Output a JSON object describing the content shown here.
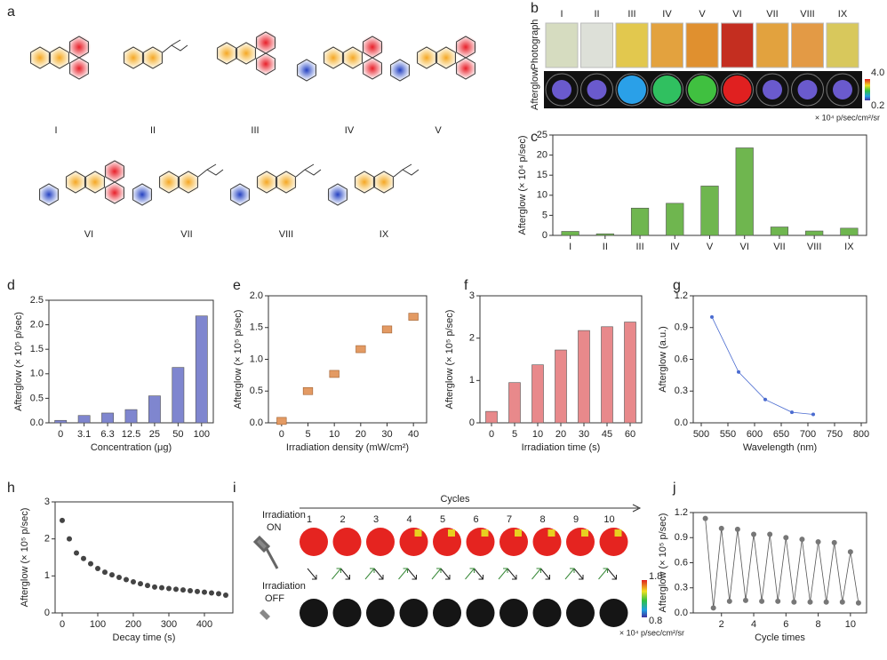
{
  "panel_labels": [
    "a",
    "b",
    "c",
    "d",
    "e",
    "f",
    "g",
    "h",
    "i",
    "j"
  ],
  "structures": {
    "labels": [
      "I",
      "II",
      "III",
      "IV",
      "V",
      "VI",
      "VII",
      "VIII",
      "IX"
    ]
  },
  "photo_panel": {
    "columns": [
      "I",
      "II",
      "III",
      "IV",
      "V",
      "VI",
      "VII",
      "VIII",
      "IX"
    ],
    "row_labels": [
      "Photograph",
      "Afterglow"
    ],
    "colorbar": [
      "4.0",
      "0.2"
    ],
    "unit": "× 10⁴ p/sec/cm²/sr"
  },
  "cycle_panel": {
    "title": "Cycles",
    "cycles": [
      "1",
      "2",
      "3",
      "4",
      "5",
      "6",
      "7",
      "8",
      "9",
      "10"
    ],
    "on_label": [
      "Irradiation",
      "ON"
    ],
    "off_label": [
      "Irradiation",
      "OFF"
    ],
    "colorbar": [
      "1.8",
      "0.8"
    ],
    "unit": "× 10⁴ p/sec/cm²/sr"
  },
  "chart_data": [
    {
      "type": "bar",
      "categories": [
        "I",
        "II",
        "III",
        "IV",
        "V",
        "VI",
        "VII",
        "VIII",
        "IX"
      ],
      "values": [
        1.0,
        0.4,
        6.8,
        8.0,
        12.3,
        21.8,
        2.1,
        1.1,
        1.8
      ],
      "color": "#6fb64f",
      "ylim": [
        0,
        25
      ],
      "yticks": [
        0,
        5,
        10,
        15,
        20,
        25
      ],
      "ylabel": "Afterglow (× 10⁴ p/sec)"
    },
    {
      "type": "bar",
      "categories": [
        "0",
        "3.1",
        "6.3",
        "12.5",
        "25",
        "50",
        "100"
      ],
      "values": [
        0.05,
        0.15,
        0.2,
        0.27,
        0.55,
        1.13,
        2.18
      ],
      "color": "#7f86cf",
      "ylim": [
        0,
        2.5
      ],
      "yticks": [
        {
          "value": 0,
          "label": "0.0"
        },
        0.5,
        {
          "value": 1,
          "label": "1.0"
        },
        1.5,
        {
          "value": 2,
          "label": "2.0"
        },
        2.5
      ],
      "xlabel": "Concentration (μg)",
      "ylabel": "Afterglow (× 10⁵ p/sec)"
    },
    {
      "type": "box",
      "categories": [
        "0",
        "5",
        "10",
        "20",
        "30",
        "40"
      ],
      "values": [
        0.03,
        0.5,
        0.77,
        1.16,
        1.47,
        1.67
      ],
      "color": "#e39a63",
      "ylim": [
        0,
        2
      ],
      "yticks": [
        {
          "value": 0,
          "label": "0.0"
        },
        0.5,
        {
          "value": 1,
          "label": "1.0"
        },
        1.5,
        {
          "value": 2,
          "label": "2.0"
        }
      ],
      "xlabel": "Irradiation density (mW/cm²)",
      "ylabel": "Afterglow (× 10⁵ p/sec)"
    },
    {
      "type": "bar",
      "categories": [
        "0",
        "5",
        "10",
        "20",
        "30",
        "45",
        "60"
      ],
      "values": [
        0.27,
        0.95,
        1.37,
        1.72,
        2.18,
        2.27,
        2.38
      ],
      "color": "#e8898b",
      "ylim": [
        0,
        3
      ],
      "yticks": [
        0,
        1,
        2,
        3
      ],
      "xlabel": "Irradiation time (s)",
      "ylabel": "Afterglow (× 10⁵ p/sec)"
    },
    {
      "type": "line",
      "x": [
        520,
        570,
        620,
        670,
        710
      ],
      "values": [
        1.0,
        0.48,
        0.22,
        0.1,
        0.08
      ],
      "color": "#4a6bd0",
      "xlim": [
        485,
        810
      ],
      "xticks": [
        500,
        550,
        600,
        650,
        700,
        750,
        800
      ],
      "ylim": [
        0,
        1.2
      ],
      "yticks": [
        {
          "value": 0,
          "label": "0.0"
        },
        0.3,
        0.6,
        0.9,
        1.2
      ],
      "xlabel": "Wavelength (nm)",
      "ylabel": "Afterglow (a.u.)"
    },
    {
      "type": "scatter",
      "x": [
        0,
        20,
        40,
        60,
        80,
        100,
        120,
        140,
        160,
        180,
        200,
        220,
        240,
        260,
        280,
        300,
        320,
        340,
        360,
        380,
        400,
        420,
        440,
        460
      ],
      "values": [
        2.5,
        2.0,
        1.62,
        1.47,
        1.33,
        1.2,
        1.1,
        1.03,
        0.96,
        0.9,
        0.84,
        0.79,
        0.74,
        0.7,
        0.68,
        0.66,
        0.64,
        0.62,
        0.6,
        0.58,
        0.56,
        0.54,
        0.52,
        0.48
      ],
      "color": "#444444",
      "xlim": [
        -20,
        480
      ],
      "xticks": [
        0,
        100,
        200,
        300,
        400
      ],
      "ylim": [
        0,
        3
      ],
      "yticks": [
        0,
        1,
        2,
        3
      ],
      "xlabel": "Decay time (s)",
      "ylabel": "Afterglow (× 10⁵ p/sec)"
    },
    {
      "type": "line",
      "x": [
        1,
        1.5,
        2,
        2.5,
        3,
        3.5,
        4,
        4.5,
        5,
        5.5,
        6,
        6.5,
        7,
        7.5,
        8,
        8.5,
        9,
        9.5,
        10,
        10.5
      ],
      "values": [
        1.13,
        0.06,
        1.01,
        0.14,
        1.0,
        0.15,
        0.94,
        0.14,
        0.94,
        0.14,
        0.9,
        0.13,
        0.88,
        0.13,
        0.85,
        0.13,
        0.84,
        0.13,
        0.73,
        0.12
      ],
      "color": "#555555",
      "xlim": [
        0.25,
        11
      ],
      "xticks": [
        2,
        4,
        6,
        8,
        10
      ],
      "ylim": [
        0,
        1.2
      ],
      "yticks": [
        {
          "value": 0,
          "label": "0.0"
        },
        0.3,
        0.6,
        0.9,
        1.2
      ],
      "xlabel": "Cycle times",
      "ylabel": "Afterglow (× 10⁵ p/sec)"
    }
  ]
}
